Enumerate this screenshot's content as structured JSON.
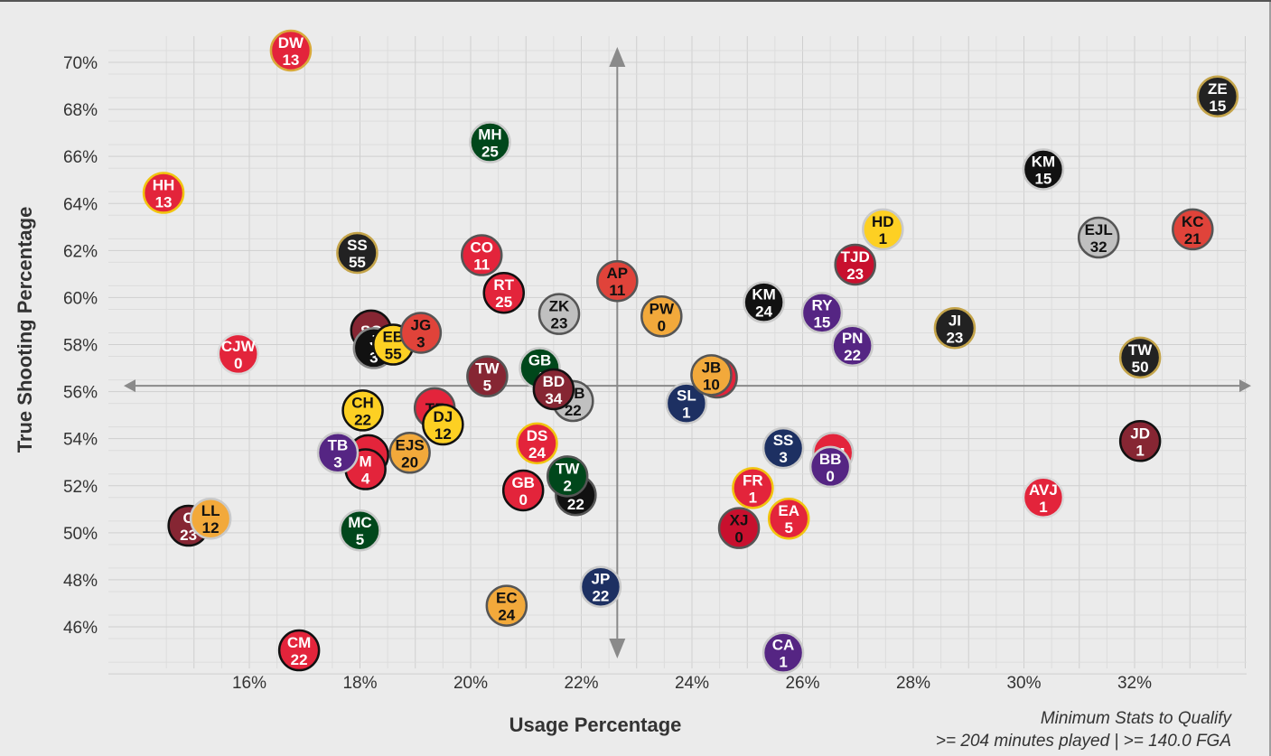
{
  "chart_data": {
    "type": "scatter",
    "title": "",
    "xlabel": "Usage Percentage",
    "ylabel": "True Shooting Percentage",
    "xlim": [
      14.5,
      34.5
    ],
    "ylim": [
      44.3,
      71.3
    ],
    "x_ticks": [
      "16%",
      "18%",
      "20%",
      "22%",
      "24%",
      "26%",
      "28%",
      "30%",
      "32%"
    ],
    "y_ticks": [
      "46%",
      "48%",
      "50%",
      "52%",
      "54%",
      "56%",
      "58%",
      "60%",
      "62%",
      "64%",
      "66%",
      "68%",
      "70%"
    ],
    "x_tick_values": [
      16,
      18,
      20,
      22,
      24,
      26,
      28,
      30,
      32
    ],
    "y_tick_values": [
      46,
      48,
      50,
      52,
      54,
      56,
      58,
      60,
      62,
      64,
      66,
      68,
      70
    ],
    "crosshair": {
      "x": 22.65,
      "y": 56.25
    },
    "grid": true,
    "footnote": [
      "Minimum Stats to Qualify",
      ">= 204 minutes played | >= 140.0 FGA"
    ],
    "points": [
      {
        "initials": "DW",
        "number": "13",
        "x": 16.75,
        "y": 70.5,
        "fill": "#e3243b",
        "text": "#ffffff",
        "ring": "#d9a93a"
      },
      {
        "initials": "HH",
        "number": "13",
        "x": 14.45,
        "y": 64.45,
        "fill": "#e3243b",
        "text": "#ffffff",
        "ring": "#f1c40f"
      },
      {
        "initials": "CJW",
        "number": "0",
        "x": 15.8,
        "y": 57.6,
        "fill": "#e3243b",
        "text": "#ffffff",
        "ring": "#d9d9d9"
      },
      {
        "initials": "CM",
        "number": "22",
        "x": 16.9,
        "y": 45.0,
        "fill": "#e3243b",
        "text": "#ffffff",
        "ring": "#111111"
      },
      {
        "initials": "C",
        "number": "23",
        "x": 14.9,
        "y": 50.3,
        "fill": "#862633",
        "text": "#ffffff",
        "ring": "#111111"
      },
      {
        "initials": "LL",
        "number": "12",
        "x": 15.3,
        "y": 50.6,
        "fill": "#f2a93b",
        "text": "#111111",
        "ring": "#c9c9c9"
      },
      {
        "initials": "SS",
        "number": "55",
        "x": 17.95,
        "y": 61.9,
        "fill": "#222222",
        "text": "#ffffff",
        "ring": "#c4a44a"
      },
      {
        "initials": "SC",
        "number": "",
        "x": 18.2,
        "y": 58.6,
        "fill": "#862633",
        "text": "#ffffff",
        "ring": "#111111"
      },
      {
        "initials": "J",
        "number": "3",
        "x": 18.25,
        "y": 57.85,
        "fill": "#111111",
        "text": "#ffffff",
        "ring": "#888888"
      },
      {
        "initials": "EB",
        "number": "55",
        "x": 18.6,
        "y": 58.0,
        "fill": "#fdd023",
        "text": "#111111",
        "ring": "#111111"
      },
      {
        "initials": "JG",
        "number": "3",
        "x": 19.1,
        "y": 58.5,
        "fill": "#e0433a",
        "text": "#111111",
        "ring": "#555555"
      },
      {
        "initials": "CH",
        "number": "22",
        "x": 18.05,
        "y": 55.2,
        "fill": "#fdd023",
        "text": "#111111",
        "ring": "#111111"
      },
      {
        "initials": "T",
        "number": "",
        "x": 18.15,
        "y": 53.3,
        "fill": "#e3243b",
        "text": "#ffffff",
        "ring": "#111111"
      },
      {
        "initials": "M",
        "number": "4",
        "x": 18.1,
        "y": 52.7,
        "fill": "#e3243b",
        "text": "#ffffff",
        "ring": "#111111"
      },
      {
        "initials": "TB",
        "number": "3",
        "x": 17.6,
        "y": 53.4,
        "fill": "#552583",
        "text": "#ffffff",
        "ring": "#c9c9c9"
      },
      {
        "initials": "EJS",
        "number": "20",
        "x": 18.9,
        "y": 53.4,
        "fill": "#f2a93b",
        "text": "#111111",
        "ring": "#555555"
      },
      {
        "initials": "MC",
        "number": "5",
        "x": 18.0,
        "y": 50.1,
        "fill": "#00471b",
        "text": "#ffffff",
        "ring": "#c9c9c9"
      },
      {
        "initials": "TF",
        "number": "",
        "x": 19.35,
        "y": 55.3,
        "fill": "#e3243b",
        "text": "#111111",
        "ring": "#555555"
      },
      {
        "initials": "DJ",
        "number": "12",
        "x": 19.5,
        "y": 54.6,
        "fill": "#fdd023",
        "text": "#111111",
        "ring": "#111111"
      },
      {
        "initials": "MH",
        "number": "25",
        "x": 20.35,
        "y": 66.6,
        "fill": "#00471b",
        "text": "#ffffff",
        "ring": "#c9c9c9"
      },
      {
        "initials": "CO",
        "number": "11",
        "x": 20.2,
        "y": 61.8,
        "fill": "#e3243b",
        "text": "#ffffff",
        "ring": "#555555"
      },
      {
        "initials": "RT",
        "number": "25",
        "x": 20.6,
        "y": 60.2,
        "fill": "#e3243b",
        "text": "#ffffff",
        "ring": "#111111"
      },
      {
        "initials": "TW",
        "number": "5",
        "x": 20.3,
        "y": 56.65,
        "fill": "#862633",
        "text": "#ffffff",
        "ring": "#555555"
      },
      {
        "initials": "ZK",
        "number": "23",
        "x": 21.6,
        "y": 59.3,
        "fill": "#c0c0c0",
        "text": "#111111",
        "ring": "#555555"
      },
      {
        "initials": "GB",
        "number": "4",
        "x": 21.25,
        "y": 57.0,
        "fill": "#00471b",
        "text": "#ffffff",
        "ring": "#c9c9c9"
      },
      {
        "initials": "MB",
        "number": "22",
        "x": 21.85,
        "y": 55.6,
        "fill": "#c0c0c0",
        "text": "#111111",
        "ring": "#555555"
      },
      {
        "initials": "BD",
        "number": "34",
        "x": 21.5,
        "y": 56.1,
        "fill": "#862633",
        "text": "#ffffff",
        "ring": "#111111"
      },
      {
        "initials": "DS",
        "number": "24",
        "x": 21.2,
        "y": 53.8,
        "fill": "#e3243b",
        "text": "#ffffff",
        "ring": "#f1c40f"
      },
      {
        "initials": "GB",
        "number": "0",
        "x": 20.95,
        "y": 51.8,
        "fill": "#e3243b",
        "text": "#ffffff",
        "ring": "#111111"
      },
      {
        "initials": "J",
        "number": "22",
        "x": 21.9,
        "y": 51.6,
        "fill": "#111111",
        "text": "#ffffff",
        "ring": "#555555"
      },
      {
        "initials": "TW",
        "number": "2",
        "x": 21.75,
        "y": 52.4,
        "fill": "#00471b",
        "text": "#ffffff",
        "ring": "#555555"
      },
      {
        "initials": "EC",
        "number": "24",
        "x": 20.65,
        "y": 46.9,
        "fill": "#f2a93b",
        "text": "#111111",
        "ring": "#555555"
      },
      {
        "initials": "JP",
        "number": "22",
        "x": 22.35,
        "y": 47.7,
        "fill": "#1d3062",
        "text": "#ffffff",
        "ring": "#c9c9c9"
      },
      {
        "initials": "AP",
        "number": "11",
        "x": 22.65,
        "y": 60.7,
        "fill": "#e0433a",
        "text": "#111111",
        "ring": "#555555"
      },
      {
        "initials": "PW",
        "number": "0",
        "x": 23.45,
        "y": 59.2,
        "fill": "#f2a93b",
        "text": "#111111",
        "ring": "#555555"
      },
      {
        "initials": "SL",
        "number": "1",
        "x": 23.9,
        "y": 55.5,
        "fill": "#1d3062",
        "text": "#ffffff",
        "ring": "#c9c9c9"
      },
      {
        "initials": "T",
        "number": "",
        "x": 24.45,
        "y": 56.6,
        "fill": "#e3243b",
        "text": "#ffffff",
        "ring": "#555555"
      },
      {
        "initials": "JB",
        "number": "10",
        "x": 24.35,
        "y": 56.7,
        "fill": "#f2a93b",
        "text": "#111111",
        "ring": "#555555"
      },
      {
        "initials": "KM",
        "number": "24",
        "x": 25.3,
        "y": 59.8,
        "fill": "#111111",
        "text": "#ffffff",
        "ring": "#c9c9c9"
      },
      {
        "initials": "RY",
        "number": "15",
        "x": 26.35,
        "y": 59.35,
        "fill": "#552583",
        "text": "#ffffff",
        "ring": "#c9c9c9"
      },
      {
        "initials": "PN",
        "number": "22",
        "x": 26.9,
        "y": 57.95,
        "fill": "#552583",
        "text": "#ffffff",
        "ring": "#c9c9c9"
      },
      {
        "initials": "TJD",
        "number": "23",
        "x": 26.95,
        "y": 61.4,
        "fill": "#c8102e",
        "text": "#ffffff",
        "ring": "#555555"
      },
      {
        "initials": "HD",
        "number": "1",
        "x": 27.45,
        "y": 62.9,
        "fill": "#fdd023",
        "text": "#111111",
        "ring": "#c9c9c9"
      },
      {
        "initials": "SS",
        "number": "3",
        "x": 25.65,
        "y": 53.6,
        "fill": "#1d3062",
        "text": "#ffffff",
        "ring": "#c9c9c9"
      },
      {
        "initials": "BM",
        "number": "",
        "x": 26.55,
        "y": 53.4,
        "fill": "#e3243b",
        "text": "#ffffff",
        "ring": "#c9c9c9"
      },
      {
        "initials": "BB",
        "number": "0",
        "x": 26.5,
        "y": 52.8,
        "fill": "#552583",
        "text": "#ffffff",
        "ring": "#c9c9c9"
      },
      {
        "initials": "FR",
        "number": "1",
        "x": 25.1,
        "y": 51.9,
        "fill": "#e3243b",
        "text": "#ffffff",
        "ring": "#f1c40f"
      },
      {
        "initials": "EA",
        "number": "5",
        "x": 25.75,
        "y": 50.6,
        "fill": "#e3243b",
        "text": "#ffffff",
        "ring": "#f1c40f"
      },
      {
        "initials": "XJ",
        "number": "0",
        "x": 24.85,
        "y": 50.2,
        "fill": "#c8102e",
        "text": "#111111",
        "ring": "#555555"
      },
      {
        "initials": "CA",
        "number": "1",
        "x": 25.65,
        "y": 44.9,
        "fill": "#552583",
        "text": "#ffffff",
        "ring": "#c9c9c9"
      },
      {
        "initials": "JI",
        "number": "23",
        "x": 28.75,
        "y": 58.7,
        "fill": "#222222",
        "text": "#ffffff",
        "ring": "#c4a44a"
      },
      {
        "initials": "KM",
        "number": "15",
        "x": 30.35,
        "y": 65.45,
        "fill": "#111111",
        "text": "#ffffff",
        "ring": "#c9c9c9"
      },
      {
        "initials": "EJL",
        "number": "32",
        "x": 31.35,
        "y": 62.55,
        "fill": "#c0c0c0",
        "text": "#111111",
        "ring": "#555555"
      },
      {
        "initials": "KC",
        "number": "21",
        "x": 33.05,
        "y": 62.9,
        "fill": "#e0433a",
        "text": "#111111",
        "ring": "#555555"
      },
      {
        "initials": "ZE",
        "number": "15",
        "x": 33.5,
        "y": 68.55,
        "fill": "#222222",
        "text": "#ffffff",
        "ring": "#c4a44a"
      },
      {
        "initials": "TW",
        "number": "50",
        "x": 32.1,
        "y": 57.45,
        "fill": "#222222",
        "text": "#ffffff",
        "ring": "#c4a44a"
      },
      {
        "initials": "JD",
        "number": "1",
        "x": 32.1,
        "y": 53.9,
        "fill": "#862633",
        "text": "#ffffff",
        "ring": "#111111"
      },
      {
        "initials": "AVJ",
        "number": "1",
        "x": 30.35,
        "y": 51.5,
        "fill": "#e3243b",
        "text": "#ffffff",
        "ring": "#d9d9d9"
      }
    ]
  }
}
